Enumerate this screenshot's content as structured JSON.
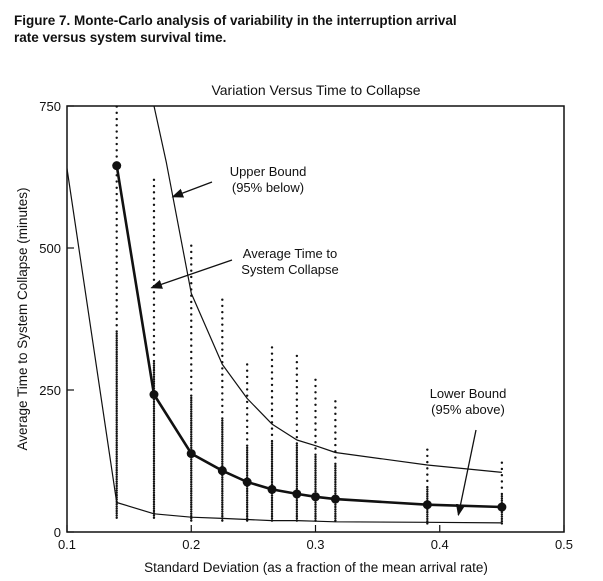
{
  "caption": {
    "line1": "Figure 7. Monte-Carlo analysis of variability in the interruption arrival",
    "line2": "rate versus system survival time."
  },
  "chart_data": {
    "type": "line",
    "title": "Variation Versus Time to Collapse",
    "xlabel": "Standard Deviation (as a fraction of the mean arrival rate)",
    "ylabel": "Average Time to System Collapse (minutes)",
    "xlim": [
      0.1,
      0.5
    ],
    "ylim": [
      0,
      750
    ],
    "x_ticks": [
      0.1,
      0.2,
      0.3,
      0.4,
      0.5
    ],
    "x_tick_labels": [
      "0.1",
      "0.2",
      "0.3",
      "0.4",
      "0.5"
    ],
    "y_ticks": [
      0,
      250,
      500,
      750
    ],
    "y_tick_labels": [
      "0",
      "250",
      "500",
      "750"
    ],
    "grid": false,
    "legend": "none",
    "series": [
      {
        "role": "average",
        "x": [
          0.14,
          0.17,
          0.2,
          0.225,
          0.245,
          0.265,
          0.285,
          0.3,
          0.316,
          0.39,
          0.45
        ],
        "y": [
          645,
          242,
          138,
          108,
          88,
          75,
          67,
          62,
          58,
          48,
          44
        ]
      },
      {
        "role": "upper-bound",
        "x": [
          0.17,
          0.18,
          0.2,
          0.225,
          0.245,
          0.265,
          0.285,
          0.3,
          0.316,
          0.39,
          0.45
        ],
        "y": [
          750,
          650,
          420,
          295,
          235,
          190,
          162,
          152,
          140,
          118,
          105
        ]
      },
      {
        "role": "lower-bound",
        "x": [
          0.1,
          0.14,
          0.17,
          0.2,
          0.225,
          0.245,
          0.265,
          0.285,
          0.3,
          0.316,
          0.39,
          0.45
        ],
        "y": [
          640,
          52,
          32,
          26,
          24,
          22,
          20,
          20,
          19,
          18,
          17,
          16
        ]
      }
    ],
    "scatter_columns": [
      {
        "x": 0.14,
        "y_min": 25,
        "y_max": 750
      },
      {
        "x": 0.17,
        "y_min": 25,
        "y_max": 630
      },
      {
        "x": 0.2,
        "y_min": 20,
        "y_max": 505
      },
      {
        "x": 0.225,
        "y_min": 20,
        "y_max": 415
      },
      {
        "x": 0.245,
        "y_min": 20,
        "y_max": 305
      },
      {
        "x": 0.265,
        "y_min": 20,
        "y_max": 330
      },
      {
        "x": 0.285,
        "y_min": 20,
        "y_max": 315
      },
      {
        "x": 0.3,
        "y_min": 20,
        "y_max": 275
      },
      {
        "x": 0.316,
        "y_min": 20,
        "y_max": 235
      },
      {
        "x": 0.39,
        "y_min": 15,
        "y_max": 150
      },
      {
        "x": 0.45,
        "y_min": 15,
        "y_max": 130
      }
    ],
    "annotations": [
      {
        "id": "upper",
        "lines": [
          "Upper Bound",
          "(95% below)"
        ],
        "arrow_to": [
          0.185,
          590
        ]
      },
      {
        "id": "average",
        "lines": [
          "Average Time to",
          "System Collapse"
        ],
        "arrow_to": [
          0.168,
          430
        ]
      },
      {
        "id": "lower",
        "lines": [
          "Lower Bound",
          "(95% above)"
        ],
        "arrow_to": [
          0.415,
          30
        ]
      }
    ]
  }
}
